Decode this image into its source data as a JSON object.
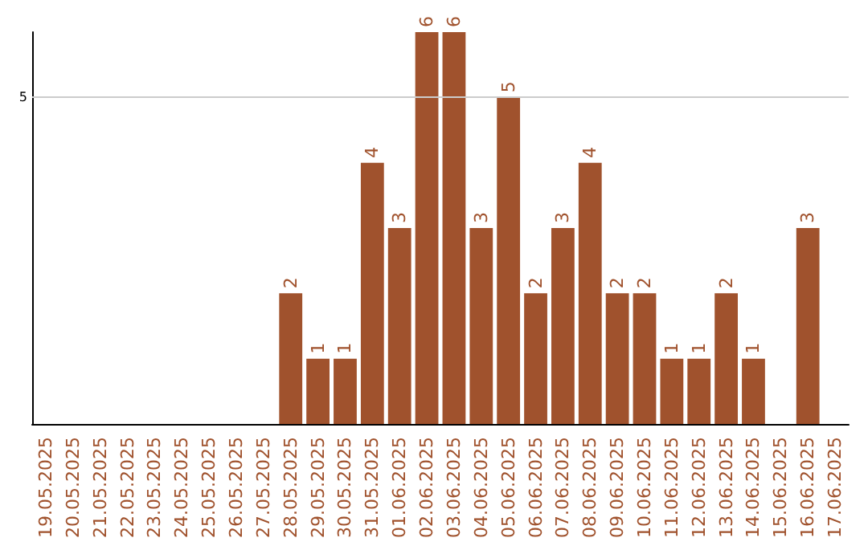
{
  "chart_data": {
    "type": "bar",
    "categories": [
      "19.05.2025",
      "20.05.2025",
      "21.05.2025",
      "22.05.2025",
      "23.05.2025",
      "24.05.2025",
      "25.05.2025",
      "26.05.2025",
      "27.05.2025",
      "28.05.2025",
      "29.05.2025",
      "30.05.2025",
      "31.05.2025",
      "01.06.2025",
      "02.06.2025",
      "03.06.2025",
      "04.06.2025",
      "05.06.2025",
      "06.06.2025",
      "07.06.2025",
      "08.06.2025",
      "09.06.2025",
      "10.06.2025",
      "11.06.2025",
      "12.06.2025",
      "13.06.2025",
      "14.06.2025",
      "15.06.2025",
      "16.06.2025",
      "17.06.2025"
    ],
    "values": [
      0,
      0,
      0,
      0,
      0,
      0,
      0,
      0,
      0,
      2,
      1,
      1,
      4,
      3,
      6,
      6,
      3,
      5,
      2,
      3,
      4,
      2,
      2,
      1,
      1,
      2,
      1,
      0,
      3,
      0
    ],
    "value_labels": [
      null,
      null,
      null,
      null,
      null,
      null,
      null,
      null,
      null,
      "2",
      "1",
      "1",
      "4",
      "3",
      "6",
      "6",
      "3",
      "5",
      "2",
      "3",
      "4",
      "2",
      "2",
      "1",
      "1",
      "2",
      "1",
      null,
      "3",
      null
    ],
    "color": "#a0522d",
    "ylim": [
      0,
      6
    ],
    "yticks": [
      5
    ],
    "grid": "y"
  }
}
